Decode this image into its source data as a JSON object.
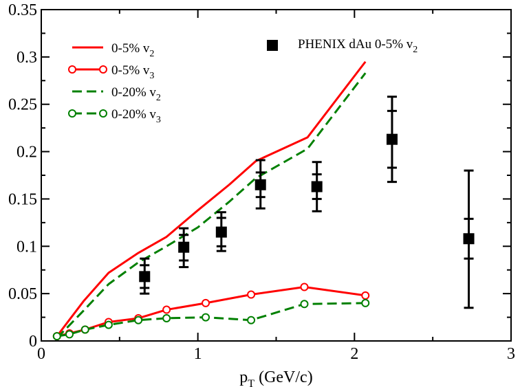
{
  "chart_data": {
    "type": "line",
    "xlabel": {
      "main": "p",
      "sub": "T",
      "rest": " (GeV/c)"
    },
    "ylabel": "",
    "xlim": [
      0,
      3
    ],
    "ylim": [
      0,
      0.35
    ],
    "x_ticks": [
      0,
      1,
      2,
      3
    ],
    "x_tick_labels": [
      "0",
      "1",
      "2",
      "3"
    ],
    "y_ticks": [
      0,
      0.05,
      0.1,
      0.15,
      0.2,
      0.25,
      0.3,
      0.35
    ],
    "y_tick_labels": [
      "0",
      "0.05",
      "0.1",
      "0.15",
      "0.2",
      "0.25",
      "0.3",
      "0.35"
    ],
    "grid": false,
    "series": [
      {
        "name": "0-5% v2",
        "label": {
          "main": "0-5% v",
          "sub": "2"
        },
        "color": "#ff0000",
        "dash": "solid",
        "marker": "none",
        "x": [
          0.1,
          0.27,
          0.43,
          0.62,
          0.8,
          1.0,
          1.2,
          1.37,
          1.7,
          2.07
        ],
        "y": [
          0.005,
          0.042,
          0.072,
          0.093,
          0.11,
          0.138,
          0.165,
          0.19,
          0.215,
          0.295
        ]
      },
      {
        "name": "0-5% v3",
        "label": {
          "main": "0-5% v",
          "sub": "3"
        },
        "color": "#ff0000",
        "dash": "solid",
        "marker": "open-circle",
        "x": [
          0.1,
          0.18,
          0.28,
          0.43,
          0.62,
          0.8,
          1.05,
          1.34,
          1.68,
          2.07
        ],
        "y": [
          0.005,
          0.008,
          0.012,
          0.02,
          0.024,
          0.033,
          0.04,
          0.049,
          0.057,
          0.048
        ]
      },
      {
        "name": "0-20% v2",
        "label": {
          "main": "0-20% v",
          "sub": "2"
        },
        "color": "#008000",
        "dash": "dashed",
        "marker": "none",
        "x": [
          0.1,
          0.27,
          0.43,
          0.62,
          0.8,
          1.0,
          1.2,
          1.37,
          1.7,
          2.07
        ],
        "y": [
          0.003,
          0.032,
          0.06,
          0.083,
          0.1,
          0.12,
          0.147,
          0.172,
          0.203,
          0.283
        ]
      },
      {
        "name": "0-20% v3",
        "label": {
          "main": "0-20% v",
          "sub": "3"
        },
        "color": "#008000",
        "dash": "dashed",
        "marker": "open-circle",
        "x": [
          0.1,
          0.18,
          0.28,
          0.43,
          0.62,
          0.8,
          1.05,
          1.34,
          1.68,
          2.07
        ],
        "y": [
          0.005,
          0.007,
          0.012,
          0.017,
          0.022,
          0.024,
          0.025,
          0.022,
          0.039,
          0.04
        ]
      },
      {
        "name": "PHENIX dAu 0-5% v2",
        "label": {
          "main": "PHENIX dAu 0-5% v",
          "sub": "2"
        },
        "color": "#000000",
        "marker": "filled-square",
        "type": "errorbar",
        "x": [
          0.66,
          0.91,
          1.15,
          1.4,
          1.76,
          2.24,
          2.73
        ],
        "y": [
          0.068,
          0.099,
          0.115,
          0.165,
          0.163,
          0.213,
          0.108
        ],
        "err_inner": [
          [
            0.056,
            0.08
          ],
          [
            0.085,
            0.112
          ],
          [
            0.1,
            0.13
          ],
          [
            0.152,
            0.178
          ],
          [
            0.15,
            0.176
          ],
          [
            0.183,
            0.243
          ],
          [
            0.087,
            0.129
          ]
        ],
        "err_outer": [
          [
            0.05,
            0.087
          ],
          [
            0.078,
            0.119
          ],
          [
            0.095,
            0.136
          ],
          [
            0.14,
            0.191
          ],
          [
            0.137,
            0.189
          ],
          [
            0.168,
            0.258
          ],
          [
            0.035,
            0.18
          ]
        ]
      }
    ],
    "legend": {
      "position": "top-left and top-center"
    }
  }
}
